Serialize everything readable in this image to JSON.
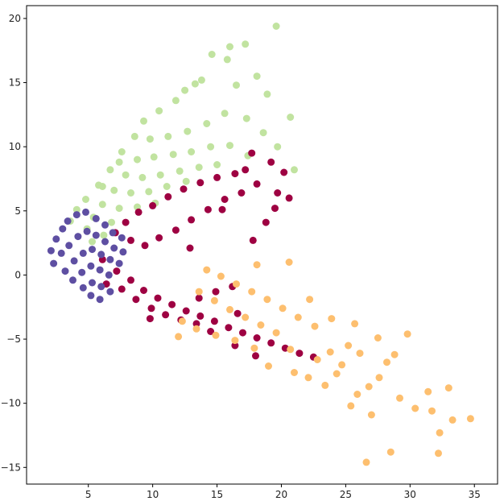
{
  "chart_data": {
    "type": "scatter",
    "title": "",
    "xlabel": "",
    "ylabel": "",
    "xlim": [
      0.2,
      36.8
    ],
    "ylim": [
      -16.3,
      21.0
    ],
    "x_ticks": [
      5,
      10,
      15,
      20,
      25,
      30,
      35
    ],
    "y_ticks": [
      20,
      15,
      10,
      5,
      0,
      -5,
      -10,
      -15
    ],
    "y_tick_labels": [
      "20",
      "15",
      "10",
      "5",
      "0",
      "−5",
      "−10",
      "−15"
    ],
    "grid": false,
    "legend": "none",
    "series": [
      {
        "color": "#c1e3a0",
        "points": [
          [
            19.6,
            19.4
          ],
          [
            16.0,
            17.8
          ],
          [
            17.2,
            18.0
          ],
          [
            14.6,
            17.2
          ],
          [
            15.8,
            16.8
          ],
          [
            18.1,
            15.5
          ],
          [
            13.8,
            15.2
          ],
          [
            12.5,
            14.4
          ],
          [
            11.8,
            13.6
          ],
          [
            10.5,
            12.8
          ],
          [
            20.7,
            12.3
          ],
          [
            9.3,
            12.0
          ],
          [
            8.6,
            10.8
          ],
          [
            9.8,
            10.6
          ],
          [
            11.2,
            10.8
          ],
          [
            12.7,
            11.2
          ],
          [
            14.2,
            11.8
          ],
          [
            15.6,
            12.6
          ],
          [
            17.3,
            12.2
          ],
          [
            18.6,
            11.1
          ],
          [
            19.7,
            10.0
          ],
          [
            7.6,
            9.6
          ],
          [
            8.8,
            9.0
          ],
          [
            10.1,
            9.2
          ],
          [
            11.6,
            9.4
          ],
          [
            13.0,
            9.6
          ],
          [
            14.5,
            10.0
          ],
          [
            16.0,
            10.1
          ],
          [
            17.4,
            9.3
          ],
          [
            6.7,
            8.2
          ],
          [
            7.9,
            7.8
          ],
          [
            9.2,
            7.6
          ],
          [
            10.6,
            7.8
          ],
          [
            12.1,
            8.1
          ],
          [
            13.6,
            8.4
          ],
          [
            15.0,
            8.6
          ],
          [
            5.8,
            7.0
          ],
          [
            7.0,
            6.6
          ],
          [
            8.3,
            6.4
          ],
          [
            9.7,
            6.5
          ],
          [
            11.1,
            6.9
          ],
          [
            12.6,
            7.3
          ],
          [
            4.8,
            5.9
          ],
          [
            6.1,
            5.5
          ],
          [
            7.4,
            5.2
          ],
          [
            8.8,
            5.3
          ],
          [
            10.2,
            5.6
          ],
          [
            4.1,
            5.1
          ],
          [
            5.4,
            4.5
          ],
          [
            6.8,
            4.1
          ],
          [
            3.6,
            4.2
          ],
          [
            4.9,
            3.6
          ],
          [
            6.2,
            3.1
          ],
          [
            5.3,
            2.6
          ],
          [
            21.0,
            8.2
          ],
          [
            16.5,
            14.8
          ],
          [
            18.9,
            14.1
          ],
          [
            13.3,
            14.9
          ],
          [
            7.4,
            8.8
          ],
          [
            6.1,
            6.9
          ]
        ]
      },
      {
        "color": "#9e0142",
        "points": [
          [
            17.7,
            9.5
          ],
          [
            19.2,
            8.8
          ],
          [
            20.2,
            8.0
          ],
          [
            20.6,
            6.0
          ],
          [
            19.5,
            5.2
          ],
          [
            18.8,
            4.1
          ],
          [
            17.8,
            2.7
          ],
          [
            16.4,
            7.9
          ],
          [
            15.0,
            7.6
          ],
          [
            13.7,
            7.2
          ],
          [
            12.4,
            6.7
          ],
          [
            11.2,
            6.1
          ],
          [
            10.0,
            5.4
          ],
          [
            8.9,
            4.9
          ],
          [
            7.9,
            4.1
          ],
          [
            7.1,
            3.3
          ],
          [
            8.3,
            2.7
          ],
          [
            9.4,
            2.3
          ],
          [
            10.5,
            2.9
          ],
          [
            11.8,
            3.5
          ],
          [
            13.0,
            4.3
          ],
          [
            14.3,
            5.1
          ],
          [
            15.6,
            5.9
          ],
          [
            16.9,
            6.4
          ],
          [
            18.1,
            7.1
          ],
          [
            7.2,
            0.3
          ],
          [
            8.3,
            -0.4
          ],
          [
            9.3,
            -1.2
          ],
          [
            10.4,
            -1.8
          ],
          [
            11.5,
            -2.3
          ],
          [
            12.6,
            -2.8
          ],
          [
            13.7,
            -3.2
          ],
          [
            14.8,
            -3.6
          ],
          [
            15.9,
            -4.1
          ],
          [
            17.0,
            -4.5
          ],
          [
            18.1,
            -4.9
          ],
          [
            19.2,
            -5.3
          ],
          [
            20.3,
            -5.7
          ],
          [
            21.4,
            -6.1
          ],
          [
            22.5,
            -6.4
          ],
          [
            7.6,
            -1.1
          ],
          [
            8.7,
            -1.9
          ],
          [
            9.9,
            -2.6
          ],
          [
            11.0,
            -3.1
          ],
          [
            12.2,
            -3.5
          ],
          [
            13.4,
            -3.8
          ],
          [
            14.5,
            -4.4
          ],
          [
            16.4,
            -5.5
          ],
          [
            18.0,
            -6.3
          ],
          [
            6.4,
            -0.7
          ],
          [
            16.2,
            -0.9
          ],
          [
            14.9,
            -1.3
          ],
          [
            13.6,
            -1.8
          ],
          [
            6.1,
            1.2
          ],
          [
            9.8,
            -3.4
          ],
          [
            15.4,
            5.1
          ],
          [
            12.9,
            2.1
          ],
          [
            17.2,
            8.2
          ],
          [
            19.7,
            6.4
          ],
          [
            16.6,
            -3.0
          ]
        ]
      },
      {
        "color": "#5e4fa2",
        "points": [
          [
            2.1,
            1.9
          ],
          [
            2.5,
            2.8
          ],
          [
            3.0,
            3.6
          ],
          [
            3.4,
            4.2
          ],
          [
            4.1,
            4.7
          ],
          [
            4.8,
            4.9
          ],
          [
            5.6,
            4.4
          ],
          [
            6.3,
            3.9
          ],
          [
            6.9,
            3.3
          ],
          [
            7.6,
            2.9
          ],
          [
            2.3,
            0.9
          ],
          [
            2.9,
            1.7
          ],
          [
            3.5,
            2.3
          ],
          [
            4.2,
            3.0
          ],
          [
            4.9,
            3.4
          ],
          [
            5.6,
            3.1
          ],
          [
            6.3,
            2.6
          ],
          [
            7.0,
            2.1
          ],
          [
            7.7,
            1.8
          ],
          [
            3.2,
            0.3
          ],
          [
            3.9,
            1.1
          ],
          [
            4.6,
            1.7
          ],
          [
            5.3,
            2.0
          ],
          [
            6.0,
            1.6
          ],
          [
            6.7,
            1.2
          ],
          [
            7.4,
            0.9
          ],
          [
            3.8,
            -0.4
          ],
          [
            4.5,
            0.2
          ],
          [
            5.2,
            0.7
          ],
          [
            5.9,
            0.4
          ],
          [
            6.6,
            0.0
          ],
          [
            4.6,
            -1.0
          ],
          [
            5.3,
            -0.6
          ],
          [
            6.0,
            -0.9
          ],
          [
            6.7,
            -1.3
          ],
          [
            5.2,
            -1.6
          ],
          [
            5.9,
            -1.9
          ]
        ]
      },
      {
        "color": "#fdbf6f",
        "points": [
          [
            34.7,
            -11.2
          ],
          [
            33.3,
            -11.3
          ],
          [
            32.3,
            -12.3
          ],
          [
            32.2,
            -13.9
          ],
          [
            28.5,
            -13.8
          ],
          [
            26.6,
            -14.6
          ],
          [
            33.0,
            -8.8
          ],
          [
            31.4,
            -9.1
          ],
          [
            29.8,
            -4.6
          ],
          [
            28.2,
            -6.8
          ],
          [
            27.6,
            -8.0
          ],
          [
            26.8,
            -8.7
          ],
          [
            25.9,
            -9.3
          ],
          [
            30.4,
            -10.4
          ],
          [
            29.2,
            -9.6
          ],
          [
            27.0,
            -10.9
          ],
          [
            25.4,
            -10.2
          ],
          [
            24.7,
            -7.0
          ],
          [
            23.4,
            -8.6
          ],
          [
            22.1,
            -8.0
          ],
          [
            21.0,
            -7.6
          ],
          [
            23.8,
            -6.0
          ],
          [
            25.2,
            -5.5
          ],
          [
            26.1,
            -6.1
          ],
          [
            22.6,
            -4.0
          ],
          [
            21.3,
            -3.3
          ],
          [
            20.1,
            -2.6
          ],
          [
            18.9,
            -1.9
          ],
          [
            17.7,
            -1.3
          ],
          [
            16.5,
            -0.7
          ],
          [
            15.3,
            -0.1
          ],
          [
            14.2,
            0.4
          ],
          [
            19.6,
            -4.5
          ],
          [
            18.4,
            -3.9
          ],
          [
            17.2,
            -3.3
          ],
          [
            16.0,
            -2.7
          ],
          [
            14.8,
            -2.0
          ],
          [
            13.6,
            -1.3
          ],
          [
            17.9,
            -5.7
          ],
          [
            16.4,
            -5.1
          ],
          [
            14.9,
            -4.7
          ],
          [
            13.4,
            -4.2
          ],
          [
            12.3,
            -3.6
          ],
          [
            20.7,
            -5.8
          ],
          [
            22.8,
            -6.6
          ],
          [
            24.3,
            -7.7
          ],
          [
            19.0,
            -7.1
          ],
          [
            23.9,
            -3.4
          ],
          [
            25.7,
            -3.8
          ],
          [
            27.5,
            -4.9
          ],
          [
            28.8,
            -6.2
          ],
          [
            18.1,
            0.8
          ],
          [
            22.2,
            -1.9
          ],
          [
            20.6,
            1.0
          ],
          [
            31.7,
            -10.6
          ],
          [
            12.0,
            -4.8
          ]
        ]
      }
    ]
  }
}
